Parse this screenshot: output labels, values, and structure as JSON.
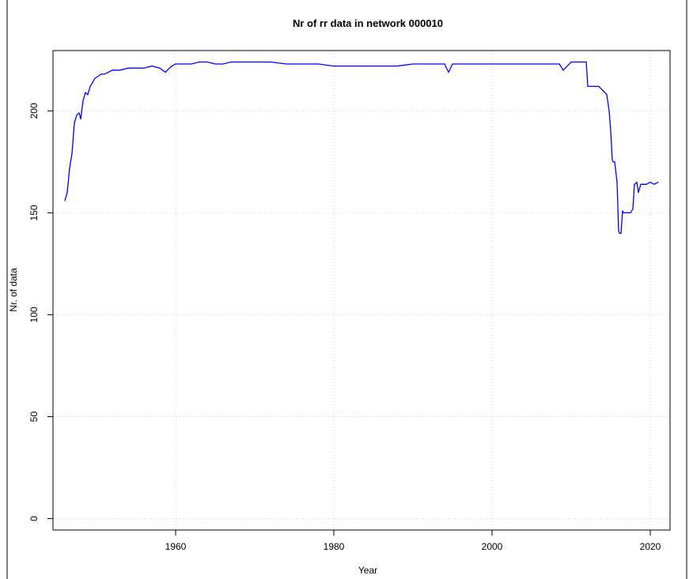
{
  "chart_data": {
    "type": "line",
    "title": "Nr of rr data in network 000010",
    "xlabel": "Year",
    "ylabel": "Nr. of data",
    "xlim": [
      1944.5,
      2022.5
    ],
    "ylim": [
      -5.6,
      229.6
    ],
    "xticks": [
      1960,
      1980,
      2000,
      2020
    ],
    "yticks": [
      0,
      50,
      100,
      150,
      200
    ],
    "grid": true,
    "legend": "none",
    "series": [
      {
        "color": "#0000ff",
        "x": [
          1946.0,
          1946.3,
          1946.6,
          1946.9,
          1947.2,
          1947.5,
          1947.8,
          1948.0,
          1948.3,
          1948.6,
          1948.9,
          1949.2,
          1949.5,
          1949.8,
          1950.2,
          1950.6,
          1951.0,
          1951.5,
          1952.0,
          1953.0,
          1954.0,
          1955.0,
          1956.0,
          1957.0,
          1958.0,
          1958.7,
          1959.5,
          1960.0,
          1961.0,
          1962.0,
          1963.0,
          1964.0,
          1965.0,
          1966.0,
          1967.0,
          1968.0,
          1970.0,
          1972.0,
          1974.0,
          1976.0,
          1978.0,
          1980.0,
          1982.0,
          1984.0,
          1986.0,
          1988.0,
          1990.0,
          1992.0,
          1994.0,
          1994.5,
          1995.0,
          1997.0,
          1999.0,
          2001.0,
          2003.0,
          2005.0,
          2007.0,
          2008.5,
          2009.0,
          2010.0,
          2011.0,
          2011.9,
          2012.1,
          2012.5,
          2013.0,
          2013.5,
          2014.0,
          2014.5,
          2014.8,
          2015.0,
          2015.2,
          2015.3,
          2015.5,
          2015.8,
          2016.0,
          2016.1,
          2016.3,
          2016.5,
          2016.6,
          2016.9,
          2017.2,
          2017.5,
          2017.8,
          2018.0,
          2018.3,
          2018.5,
          2018.8,
          2019.1,
          2019.5,
          2020.0,
          2020.5,
          2021.0
        ],
        "values": [
          156,
          160,
          172,
          179,
          194,
          198,
          199,
          196,
          205,
          209,
          208,
          212,
          214,
          216,
          217,
          218,
          218,
          219,
          220,
          220,
          221,
          221,
          221,
          222,
          221,
          219,
          222,
          223,
          223,
          223,
          224,
          224,
          223,
          223,
          224,
          224,
          224,
          224,
          223,
          223,
          223,
          222,
          222,
          222,
          222,
          222,
          223,
          223,
          223,
          219,
          223,
          223,
          223,
          223,
          223,
          223,
          223,
          223,
          220,
          224,
          224,
          224,
          212,
          212,
          212,
          212,
          210,
          208,
          200,
          190,
          176,
          175,
          175,
          165,
          141,
          140,
          140,
          151,
          150,
          150,
          150,
          150,
          152,
          164,
          165,
          160,
          164,
          164,
          164,
          165,
          164,
          165
        ]
      }
    ]
  }
}
